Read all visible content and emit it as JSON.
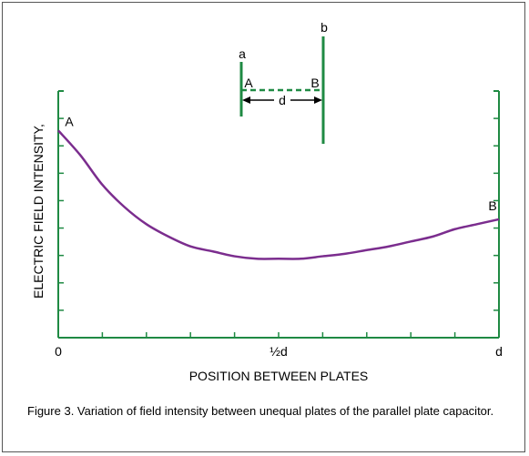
{
  "figure": {
    "caption": "Figure 3.  Variation of field intensity between unequal plates of the parallel plate capacitor."
  },
  "inset": {
    "plate_a_label": "a",
    "plate_b_label": "b",
    "point_a_label": "A",
    "point_b_label": "B",
    "gap_label": "d",
    "line_color": "#1f8a43"
  },
  "chart_data": {
    "type": "line",
    "title": "",
    "xlabel": "POSITION BETWEEN PLATES",
    "ylabel": "ELECTRIC FIELD INTENSITY,",
    "xlim": [
      0,
      1
    ],
    "ylim": [
      0,
      1
    ],
    "x_tick_labels": [
      {
        "x": 0,
        "label": "0"
      },
      {
        "x": 0.5,
        "label": "½d"
      },
      {
        "x": 1,
        "label": "d"
      }
    ],
    "grid": false,
    "series": [
      {
        "color": "#7b2d8e",
        "x": [
          0,
          0.05,
          0.1,
          0.15,
          0.2,
          0.25,
          0.3,
          0.35,
          0.4,
          0.45,
          0.5,
          0.55,
          0.6,
          0.65,
          0.7,
          0.75,
          0.8,
          0.85,
          0.9,
          0.95,
          1.0
        ],
        "y": [
          0.84,
          0.74,
          0.62,
          0.53,
          0.46,
          0.41,
          0.37,
          0.35,
          0.33,
          0.32,
          0.32,
          0.32,
          0.33,
          0.34,
          0.355,
          0.37,
          0.39,
          0.41,
          0.44,
          0.46,
          0.48
        ],
        "point_labels": [
          {
            "x": 0,
            "label": "A"
          },
          {
            "x": 1,
            "label": "B"
          }
        ]
      }
    ]
  }
}
